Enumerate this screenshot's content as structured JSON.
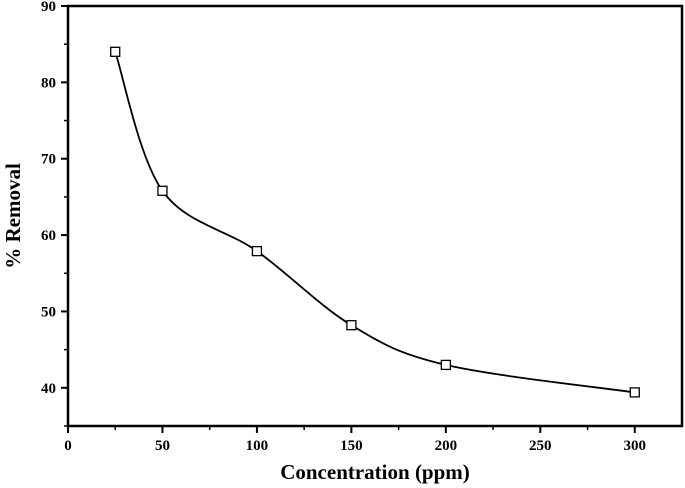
{
  "chart_data": {
    "type": "line",
    "title": "",
    "xlabel": "Concentration (ppm)",
    "ylabel": "% Removal",
    "xlim": [
      0,
      325
    ],
    "ylim": [
      35,
      90
    ],
    "x_ticks": [
      0,
      50,
      100,
      150,
      200,
      250,
      300
    ],
    "y_ticks": [
      40,
      50,
      60,
      70,
      80,
      90
    ],
    "grid": false,
    "legend": "none",
    "marker": "open-square",
    "smooth": true,
    "series": [
      {
        "x": [
          25,
          50,
          100,
          150,
          200,
          300
        ],
        "y": [
          84,
          65.8,
          57.9,
          48.2,
          43,
          39.4
        ]
      }
    ]
  },
  "colors": {
    "line": "#000000",
    "marker_fill": "#ffffff",
    "axis": "#000000",
    "background": "#ffffff"
  }
}
